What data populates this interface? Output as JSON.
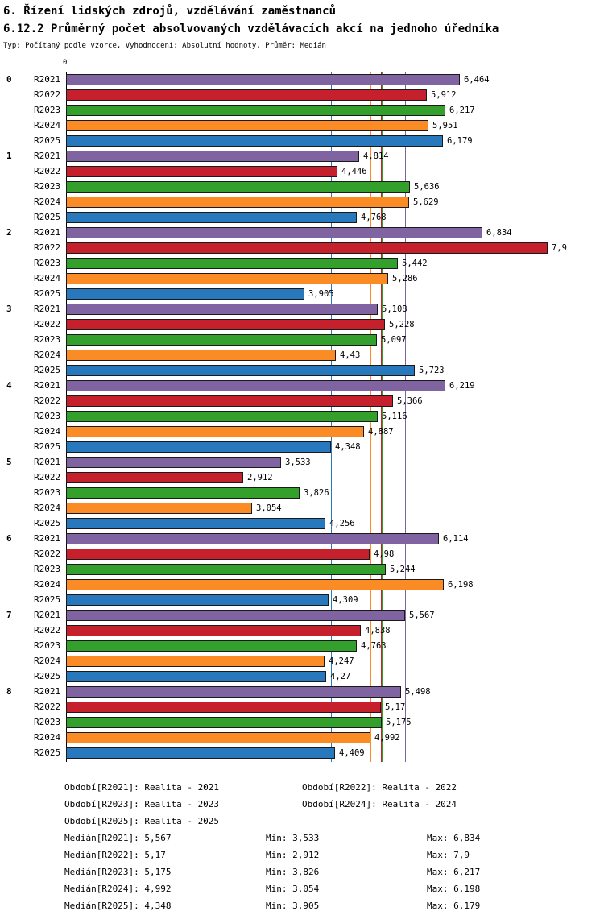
{
  "title": "6. Řízení lidských zdrojů, vzdělávání zaměstnanců",
  "subtitle": "6.12.2 Průměrný počet absolvovaných vzdělávacích akcí na jednoho úředníka",
  "meta": "Typ: Počítaný podle vzorce, Vyhodnocení: Absolutní hodnoty, Průměr: Medián",
  "chart_data": {
    "type": "bar",
    "orientation": "horizontal",
    "title": "6.12.2 Průměrný počet absolvovaných vzdělávacích akcí na jednoho úředníka",
    "xlabel": "",
    "ylabel": "",
    "xlim": [
      0,
      7.9
    ],
    "axis_zero_label": "0",
    "grid": false,
    "categories": [
      "0",
      "1",
      "2",
      "3",
      "4",
      "5",
      "6",
      "7",
      "8"
    ],
    "series": [
      {
        "name": "R2021",
        "color": "#8064A2",
        "median": 5.567,
        "values": [
          6.464,
          4.814,
          6.834,
          5.108,
          6.219,
          3.533,
          6.114,
          5.567,
          5.498
        ],
        "labels": [
          "6,464",
          "4,814",
          "6,834",
          "5,108",
          "6,219",
          "3,533",
          "6,114",
          "5,567",
          "5,498"
        ]
      },
      {
        "name": "R2022",
        "color": "#C5202C",
        "median": 5.17,
        "values": [
          5.912,
          4.446,
          7.9,
          5.228,
          5.366,
          2.912,
          4.98,
          4.838,
          5.17
        ],
        "labels": [
          "5,912",
          "4,446",
          "7,9",
          "5,228",
          "5,366",
          "2,912",
          "4,98",
          "4,838",
          "5,17"
        ]
      },
      {
        "name": "R2023",
        "color": "#33A02C",
        "median": 5.175,
        "values": [
          6.217,
          5.636,
          5.442,
          5.097,
          5.116,
          3.826,
          5.244,
          4.763,
          5.175
        ],
        "labels": [
          "6,217",
          "5,636",
          "5,442",
          "5,097",
          "5,116",
          "3,826",
          "5,244",
          "4,763",
          "5,175"
        ]
      },
      {
        "name": "R2024",
        "color": "#FB8B24",
        "median": 4.992,
        "values": [
          5.951,
          5.629,
          5.286,
          4.43,
          4.887,
          3.054,
          6.198,
          4.247,
          4.992
        ],
        "labels": [
          "5,951",
          "5,629",
          "5,286",
          "4,43",
          "4,887",
          "3,054",
          "6,198",
          "4,247",
          "4,992"
        ]
      },
      {
        "name": "R2025",
        "color": "#2878BD",
        "median": 4.348,
        "values": [
          6.179,
          4.768,
          3.905,
          5.723,
          4.348,
          4.256,
          4.309,
          4.27,
          4.409
        ],
        "labels": [
          "6,179",
          "4,768",
          "3,905",
          "5,723",
          "4,348",
          "4,256",
          "4,309",
          "4,27",
          "4,409"
        ]
      }
    ],
    "legend_position": "bottom"
  },
  "legend": {
    "items": [
      {
        "label": "Období[R2021]: Realita - 2021"
      },
      {
        "label": "Období[R2022]: Realita - 2022"
      },
      {
        "label": "Období[R2023]: Realita - 2023"
      },
      {
        "label": "Období[R2024]: Realita - 2024"
      },
      {
        "label": "Období[R2025]: Realita - 2025"
      }
    ]
  },
  "stats": [
    {
      "median": "Medián[R2021]: 5,567",
      "min": "Min: 3,533",
      "max": "Max: 6,834"
    },
    {
      "median": "Medián[R2022]: 5,17",
      "min": "Min: 2,912",
      "max": "Max: 7,9"
    },
    {
      "median": "Medián[R2023]: 5,175",
      "min": "Min: 3,826",
      "max": "Max: 6,217"
    },
    {
      "median": "Medián[R2024]: 4,992",
      "min": "Min: 3,054",
      "max": "Max: 6,198"
    },
    {
      "median": "Medián[R2025]: 4,348",
      "min": "Min: 3,905",
      "max": "Max: 6,179"
    }
  ]
}
